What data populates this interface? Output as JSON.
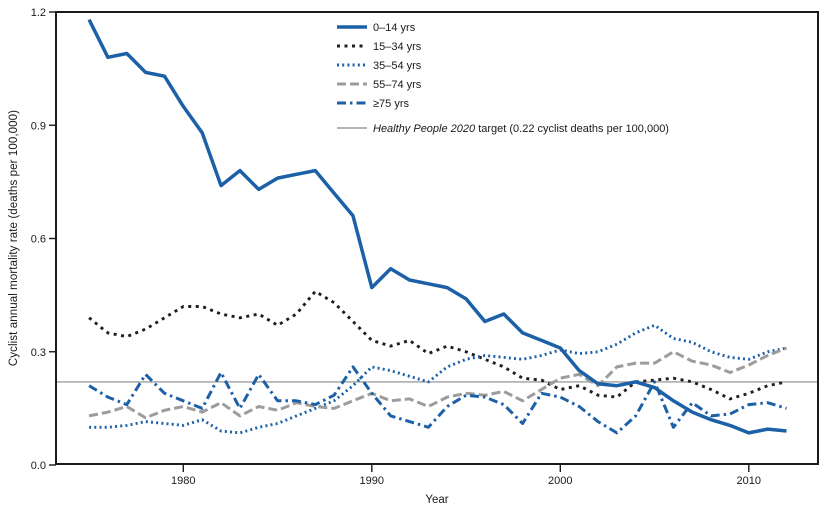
{
  "figure": {
    "background": "#ffffff",
    "text_color": "#1a1a1a"
  },
  "chart_data": {
    "type": "line",
    "title": "",
    "xlabel": "Year",
    "ylabel": "Cyclist annual mortality rate (deaths per 100,000)",
    "ylim": [
      0.0,
      1.2
    ],
    "xlim": [
      1973.2,
      2013.7
    ],
    "grid": false,
    "legend_position": "top-center-inside",
    "yticks": [
      0.0,
      0.3,
      0.6,
      0.9,
      1.2
    ],
    "ytick_labels": [
      "0.0",
      "0.3",
      "0.6",
      "0.9",
      "1.2"
    ],
    "xticks": [
      1980,
      1990,
      2000,
      2010
    ],
    "xtick_labels": [
      "1980",
      "1990",
      "2000",
      "2010"
    ],
    "x": [
      1975,
      1976,
      1977,
      1978,
      1979,
      1980,
      1981,
      1982,
      1983,
      1984,
      1985,
      1986,
      1987,
      1988,
      1989,
      1990,
      1991,
      1992,
      1993,
      1994,
      1995,
      1996,
      1997,
      1998,
      1999,
      2000,
      2001,
      2002,
      2003,
      2004,
      2005,
      2006,
      2007,
      2008,
      2009,
      2010,
      2011,
      2012
    ],
    "series": [
      {
        "name": "0–14 yrs",
        "color": "#1c60a8",
        "style": "solid",
        "values": [
          1.18,
          1.08,
          1.09,
          1.04,
          1.03,
          0.95,
          0.88,
          0.74,
          0.78,
          0.73,
          0.76,
          0.77,
          0.78,
          0.72,
          0.66,
          0.47,
          0.52,
          0.49,
          0.48,
          0.47,
          0.44,
          0.38,
          0.4,
          0.35,
          0.33,
          0.31,
          0.25,
          0.215,
          0.21,
          0.22,
          0.205,
          0.17,
          0.14,
          0.12,
          0.105,
          0.085,
          0.095,
          0.09
        ]
      },
      {
        "name": "15–34 yrs",
        "color": "#1f1f1f",
        "style": "dash",
        "values": [
          0.39,
          0.35,
          0.34,
          0.36,
          0.39,
          0.42,
          0.42,
          0.4,
          0.39,
          0.4,
          0.37,
          0.4,
          0.46,
          0.43,
          0.38,
          0.33,
          0.315,
          0.33,
          0.295,
          0.315,
          0.3,
          0.28,
          0.26,
          0.23,
          0.225,
          0.2,
          0.21,
          0.185,
          0.18,
          0.22,
          0.225,
          0.23,
          0.22,
          0.2,
          0.175,
          0.19,
          0.21,
          0.22
        ]
      },
      {
        "name": "35–54 yrs",
        "color": "#1c60a8",
        "style": "dot",
        "values": [
          0.1,
          0.1,
          0.105,
          0.115,
          0.11,
          0.105,
          0.12,
          0.09,
          0.085,
          0.1,
          0.11,
          0.13,
          0.15,
          0.17,
          0.21,
          0.26,
          0.25,
          0.235,
          0.22,
          0.26,
          0.28,
          0.29,
          0.285,
          0.28,
          0.29,
          0.305,
          0.295,
          0.3,
          0.32,
          0.35,
          0.37,
          0.335,
          0.325,
          0.3,
          0.285,
          0.28,
          0.3,
          0.31
        ]
      },
      {
        "name": "55–74 yrs",
        "color": "#9c9c9c",
        "style": "longdash",
        "values": [
          0.13,
          0.14,
          0.155,
          0.125,
          0.145,
          0.155,
          0.14,
          0.165,
          0.13,
          0.155,
          0.145,
          0.165,
          0.155,
          0.15,
          0.17,
          0.19,
          0.17,
          0.175,
          0.155,
          0.18,
          0.19,
          0.185,
          0.195,
          0.17,
          0.2,
          0.23,
          0.24,
          0.21,
          0.26,
          0.27,
          0.27,
          0.3,
          0.275,
          0.265,
          0.245,
          0.265,
          0.29,
          0.31
        ]
      },
      {
        "name": "≥75 yrs",
        "color": "#1c60a8",
        "style": "dashdot",
        "values": [
          0.21,
          0.18,
          0.16,
          0.24,
          0.19,
          0.17,
          0.15,
          0.245,
          0.15,
          0.24,
          0.17,
          0.17,
          0.16,
          0.185,
          0.26,
          0.19,
          0.13,
          0.115,
          0.1,
          0.155,
          0.185,
          0.18,
          0.16,
          0.11,
          0.19,
          0.18,
          0.155,
          0.115,
          0.085,
          0.13,
          0.22,
          0.1,
          0.165,
          0.13,
          0.135,
          0.16,
          0.165,
          0.15
        ]
      }
    ],
    "reference_line": {
      "value": 0.22,
      "color": "#8a8a8a",
      "label_italic": "Healthy People 2020",
      "label_rest": " target (0.22 cyclist deaths per 100,000)"
    }
  }
}
